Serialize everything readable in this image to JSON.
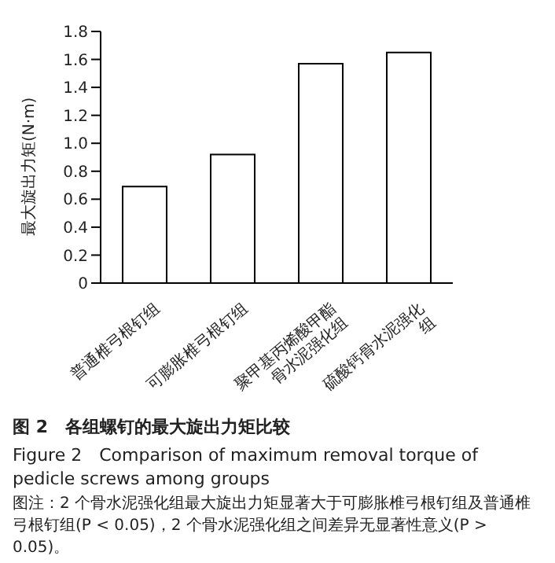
{
  "chart_data": {
    "type": "bar",
    "title": "图 2　各组螺钉的最大旋出力矩比较",
    "subtitle": "Figure 2　Comparison of maximum removal torque of pedicle screws among groups",
    "ylabel": "最大旋出力矩(N·m)",
    "categories": [
      "普通椎弓根钉组",
      "可膨胀椎弓根钉组",
      "聚甲基丙烯酸甲酯骨水泥强化组",
      "硫酸钙骨水泥强化组"
    ],
    "values": [
      0.69,
      0.92,
      1.57,
      1.65
    ],
    "color": "#ffffff",
    "ylim": [
      0,
      1.8
    ],
    "yticks": [
      0,
      0.2,
      0.4,
      0.6,
      0.8,
      {
        "value": 1,
        "label": "1.0"
      },
      1.2,
      1.4,
      1.6,
      1.8
    ],
    "grid": false,
    "legend": false,
    "annotations": [
      "图注：2 个骨水泥强化组最大旋出力矩显著大于可膨胀椎弓根钉组及普通椎弓根钉组(P < 0.05)，2 个骨水泥强化组之间差异无显著性意义(P > 0.05)。"
    ]
  }
}
